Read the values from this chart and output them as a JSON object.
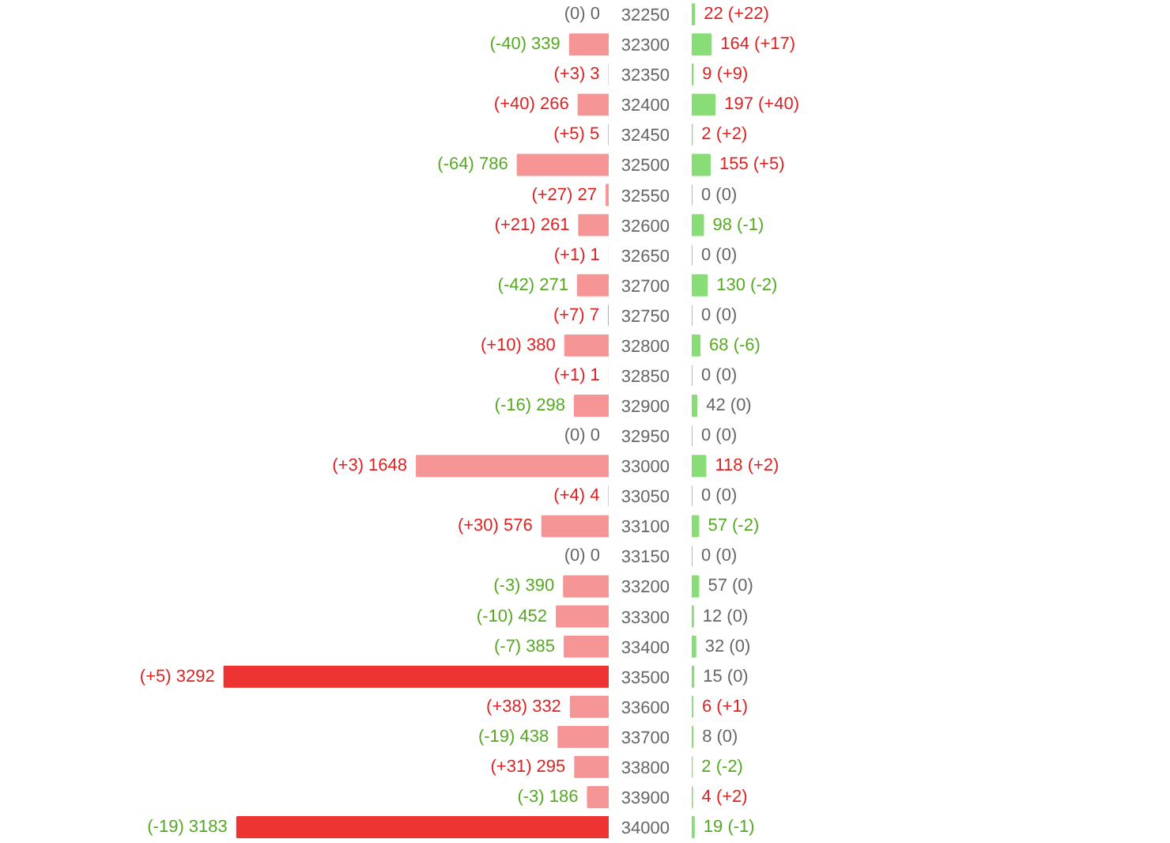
{
  "chart_data": [
    {
      "type": "bar",
      "orientation": "horizontal",
      "tick_labels": false,
      "grid": false,
      "categories": [
        "32250",
        "32300",
        "32350",
        "32400",
        "32450",
        "32500",
        "32550",
        "32600",
        "32650",
        "32700",
        "32750",
        "32800",
        "32850",
        "32900",
        "32950",
        "33000",
        "33050",
        "33100",
        "33150",
        "33200",
        "33300",
        "33400",
        "33500",
        "33600",
        "33700",
        "33800",
        "33900",
        "34000"
      ],
      "values": [
        0,
        339,
        3,
        266,
        5,
        786,
        27,
        261,
        1,
        271,
        7,
        380,
        1,
        298,
        0,
        1648,
        4,
        576,
        0,
        390,
        452,
        385,
        3292,
        332,
        438,
        295,
        186,
        3183
      ],
      "colors": [
        "#f59595",
        "#f59595",
        "#f59595",
        "#f59595",
        "#f59595",
        "#f59595",
        "#f59595",
        "#f59595",
        "#f59595",
        "#f59595",
        "#f59595",
        "#f59595",
        "#f59595",
        "#f59595",
        "#f59595",
        "#f59595",
        "#f59595",
        "#f59595",
        "#f59595",
        "#f59595",
        "#f59595",
        "#f59595",
        "#ee3333",
        "#f59595",
        "#f59595",
        "#f59595",
        "#f59595",
        "#ee3333"
      ],
      "value_labels": [
        "(0) 0",
        "(-40) 339",
        "(+3) 3",
        "(+40) 266",
        "(+5) 5",
        "(-64) 786",
        "(+27) 27",
        "(+21) 261",
        "(+1) 1",
        "(-42) 271",
        "(+7) 7",
        "(+10) 380",
        "(+1) 1",
        "(-16) 298",
        "(0) 0",
        "(+3) 1648",
        "(+4) 4",
        "(+30) 576",
        "(0) 0",
        "(-3) 390",
        "(-10) 452",
        "(-7) 385",
        "(+5) 3292",
        "(+38) 332",
        "(-19) 438",
        "(+31) 295",
        "(-3) 186",
        "(-19) 3183"
      ]
    },
    {
      "type": "bar",
      "orientation": "horizontal",
      "tick_labels": "y",
      "grid": false,
      "categories": [
        "32250",
        "32300",
        "32350",
        "32400",
        "32450",
        "32500",
        "32550",
        "32600",
        "32650",
        "32700",
        "32750",
        "32800",
        "32850",
        "32900",
        "32950",
        "33000",
        "33050",
        "33100",
        "33150",
        "33200",
        "33300",
        "33400",
        "33500",
        "33600",
        "33700",
        "33800",
        "33900",
        "34000"
      ],
      "values": [
        22,
        164,
        9,
        197,
        2,
        155,
        0,
        98,
        0,
        130,
        0,
        68,
        0,
        42,
        0,
        118,
        0,
        57,
        0,
        57,
        12,
        32,
        15,
        6,
        8,
        2,
        4,
        19
      ],
      "colors": [
        "#88dd77",
        "#88dd77",
        "#88dd77",
        "#88dd77",
        "#88dd77",
        "#88dd77",
        "#88dd77",
        "#88dd77",
        "#88dd77",
        "#88dd77",
        "#88dd77",
        "#88dd77",
        "#88dd77",
        "#88dd77",
        "#88dd77",
        "#88dd77",
        "#88dd77",
        "#88dd77",
        "#88dd77",
        "#88dd77",
        "#88dd77",
        "#88dd77",
        "#88dd77",
        "#88dd77",
        "#88dd77",
        "#88dd77",
        "#88dd77",
        "#88dd77"
      ],
      "value_labels": [
        "22 (+22)",
        "164 (+17)",
        "9 (+9)",
        "197 (+40)",
        "2 (+2)",
        "155 (+5)",
        "0 (0)",
        "98 (-1)",
        "0 (0)",
        "130 (-2)",
        "0 (0)",
        "68 (-6)",
        "0 (0)",
        "42 (0)",
        "0 (0)",
        "118 (+2)",
        "0 (0)",
        "57 (-2)",
        "0 (0)",
        "57 (0)",
        "12 (0)",
        "32 (0)",
        "15 (0)",
        "6 (+1)",
        "8 (0)",
        "2 (-2)",
        "4 (+2)",
        "19 (-1)"
      ]
    }
  ]
}
